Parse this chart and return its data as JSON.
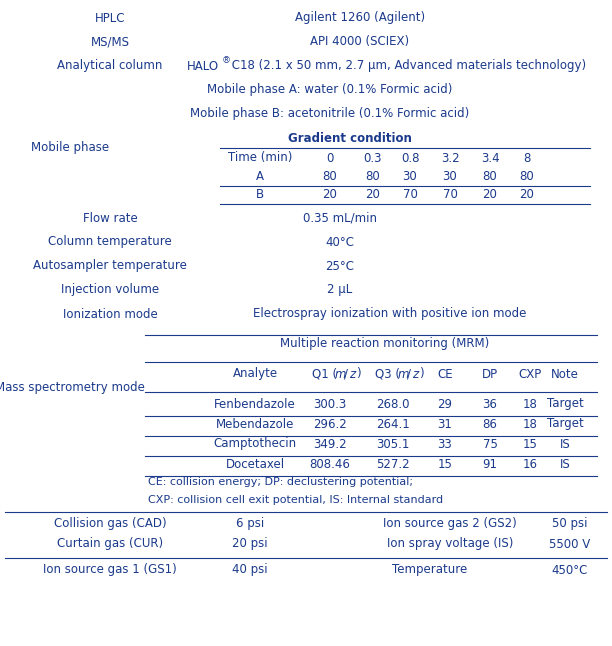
{
  "text_color": "#1b3a8c",
  "bg_color": "#ffffff",
  "line_color": "#1b3a8c",
  "font_size": 8.5,
  "gradient_headers": [
    "Time (min)",
    "0",
    "0.3",
    "0.8",
    "3.2",
    "3.4",
    "8"
  ],
  "gradient_A": [
    "A",
    "80",
    "80",
    "30",
    "30",
    "80",
    "80"
  ],
  "gradient_B": [
    "B",
    "20",
    "20",
    "70",
    "70",
    "20",
    "20"
  ],
  "ms_table_data": [
    [
      "Fenbendazole",
      "300.3",
      "268.0",
      "29",
      "36",
      "18",
      "Target"
    ],
    [
      "Mebendazole",
      "296.2",
      "264.1",
      "31",
      "86",
      "18",
      "Target"
    ],
    [
      "Camptothecin",
      "349.2",
      "305.1",
      "33",
      "75",
      "15",
      "IS"
    ],
    [
      "Docetaxel",
      "808.46",
      "527.2",
      "15",
      "91",
      "16",
      "IS"
    ]
  ],
  "footnote1": "CE: collision energy; DP: declustering potential;",
  "footnote2": "CXP: collision cell exit potential, IS: Internal standard"
}
